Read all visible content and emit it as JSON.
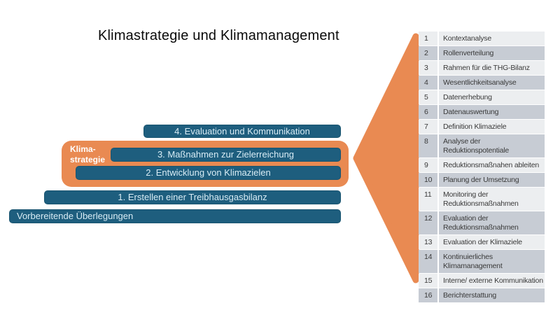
{
  "title": "Klimastrategie und Klimamanagement",
  "colors": {
    "teal": "#1e5e7e",
    "orange": "#e98a52",
    "row_light": "#eceef0",
    "row_dark": "#c7ccd4",
    "bar_text": "#d8ecf5",
    "list_text": "#3a3a3a"
  },
  "bars": [
    {
      "label": "4. Evaluation und Kommunikation"
    },
    {
      "label": "3. Maßnahmen zur Zielerreichung"
    },
    {
      "label": "2. Entwicklung von Klimazielen"
    },
    {
      "label": "1. Erstellen einer Treibhausgasbilanz"
    },
    {
      "label": "Vorbereitende Überlegungen"
    }
  ],
  "group_label": {
    "line1": "Klima-",
    "line2": "strategie"
  },
  "steps": [
    {
      "num": "1",
      "label": "Kontextanalyse"
    },
    {
      "num": "2",
      "label": "Rollenverteilung"
    },
    {
      "num": "3",
      "label": "Rahmen für die THG-Bilanz"
    },
    {
      "num": "4",
      "label": "Wesentlichkeitsanalyse"
    },
    {
      "num": "5",
      "label": "Datenerhebung"
    },
    {
      "num": "6",
      "label": "Datenauswertung"
    },
    {
      "num": "7",
      "label": "Definition Klimaziele"
    },
    {
      "num": "8",
      "label": "Analyse der Reduktionspotentiale"
    },
    {
      "num": "9",
      "label": "Reduktionsmaßnahen ableiten"
    },
    {
      "num": "10",
      "label": "Planung der Umsetzung"
    },
    {
      "num": "11",
      "label": "Monitoring der Reduktionsmaßnahmen"
    },
    {
      "num": "12",
      "label": "Evaluation der Reduktionsmaßnahmen"
    },
    {
      "num": "13",
      "label": "Evaluation der Klimaziele"
    },
    {
      "num": "14",
      "label": "Kontinuierliches Klimamanagement"
    },
    {
      "num": "15",
      "label": "Interne/ externe Kommunikation"
    },
    {
      "num": "16",
      "label": "Berichterstattung"
    }
  ]
}
